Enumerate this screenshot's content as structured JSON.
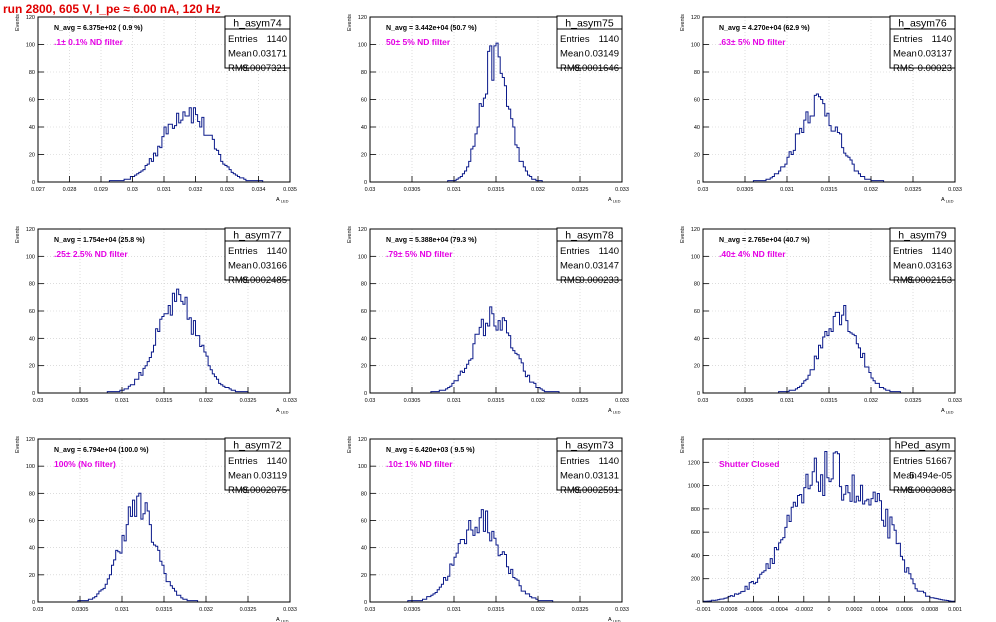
{
  "page": {
    "title": "run 2800,   605 V, I_pe ≈ 6.00 nA, 120 Hz"
  },
  "colors": {
    "hist": "#0b1a8a",
    "annotation": "#e400e4",
    "title": "#e00000",
    "frame": "#000000",
    "grid": "#c8c8c8"
  },
  "chart_data": [
    {
      "type": "bar",
      "name": "h_asym74",
      "navg": "N_avg = 6.375e+02 ( 0.9 %)",
      "filter": ".1± 0.1% ND filter",
      "stats": {
        "entries": "1140",
        "mean": "0.03171",
        "rms": "0.0007321"
      },
      "xlim": [
        0.027,
        0.035
      ],
      "ylim": [
        0,
        120
      ],
      "yticks": [
        0,
        20,
        40,
        60,
        80,
        100,
        120
      ],
      "xtick_labels": [
        "0.027",
        "0.028",
        "0.029",
        "0.03",
        "0.031",
        "0.032",
        "0.033",
        "0.034",
        "0.035"
      ],
      "xlabel": "A_LED",
      "ylabel": "Events",
      "mean": 0.03171,
      "rms": 0.00073,
      "peak": 53,
      "entries": 1140
    },
    {
      "type": "bar",
      "name": "h_asym75",
      "navg": "N_avg = 3.442e+04 (50.7 %)",
      "filter": "50± 5% ND filter",
      "stats": {
        "entries": "1140",
        "mean": "0.03149",
        "rms": "0.0001646"
      },
      "xlim": [
        0.03,
        0.033
      ],
      "ylim": [
        0,
        120
      ],
      "yticks": [
        0,
        20,
        40,
        60,
        80,
        100,
        120
      ],
      "xtick_labels": [
        "0.03",
        "0.0305",
        "0.031",
        "0.0315",
        "0.032",
        "0.0325",
        "0.033"
      ],
      "xlabel": "A_LED",
      "ylabel": "Events",
      "mean": 0.03149,
      "rms": 0.000165,
      "peak": 90,
      "entries": 1140
    },
    {
      "type": "bar",
      "name": "h_asym76",
      "navg": "N_avg = 4.270e+04 (62.9 %)",
      "filter": ".63± 5% ND filter",
      "stats": {
        "entries": "1140",
        "mean": "0.03137",
        "rms": "0.00023"
      },
      "xlim": [
        0.03,
        0.033
      ],
      "ylim": [
        0,
        120
      ],
      "yticks": [
        0,
        20,
        40,
        60,
        80,
        100,
        120
      ],
      "xtick_labels": [
        "0.03",
        "0.0305",
        "0.031",
        "0.0315",
        "0.032",
        "0.0325",
        "0.033"
      ],
      "xlabel": "A_LED",
      "ylabel": "Events",
      "mean": 0.03137,
      "rms": 0.00023,
      "peak": 58,
      "entries": 1140
    },
    {
      "type": "bar",
      "name": "h_asym77",
      "navg": "N_avg = 1.754e+04 (25.8 %)",
      "filter": ".25± 2.5% ND filter",
      "stats": {
        "entries": "1140",
        "mean": "0.03166",
        "rms": "0.0002485"
      },
      "xlim": [
        0.03,
        0.033
      ],
      "ylim": [
        0,
        120
      ],
      "yticks": [
        0,
        20,
        40,
        60,
        80,
        100,
        120
      ],
      "xtick_labels": [
        "0.03",
        "0.0305",
        "0.031",
        "0.0315",
        "0.032",
        "0.0325",
        "0.033"
      ],
      "xlabel": "A_LED",
      "ylabel": "Events",
      "mean": 0.03166,
      "rms": 0.00025,
      "peak": 65,
      "entries": 1140
    },
    {
      "type": "bar",
      "name": "h_asym78",
      "navg": "N_avg = 5.388e+04 (79.3 %)",
      "filter": ".79± 5% ND filter",
      "stats": {
        "entries": "1140",
        "mean": "0.03147",
        "rms": "0.000233"
      },
      "xlim": [
        0.03,
        0.033
      ],
      "ylim": [
        0,
        120
      ],
      "yticks": [
        0,
        20,
        40,
        60,
        80,
        100,
        120
      ],
      "xtick_labels": [
        "0.03",
        "0.0305",
        "0.031",
        "0.0315",
        "0.032",
        "0.0325",
        "0.033"
      ],
      "xlabel": "A_LED",
      "ylabel": "Events",
      "mean": 0.03147,
      "rms": 0.000233,
      "peak": 55,
      "entries": 1140
    },
    {
      "type": "bar",
      "name": "h_asym79",
      "navg": "N_avg = 2.765e+04 (40.7 %)",
      "filter": ".40± 4% ND filter",
      "stats": {
        "entries": "1140",
        "mean": "0.03163",
        "rms": "0.0002153"
      },
      "xlim": [
        0.03,
        0.033
      ],
      "ylim": [
        0,
        120
      ],
      "yticks": [
        0,
        20,
        40,
        60,
        80,
        100,
        120
      ],
      "xtick_labels": [
        "0.03",
        "0.0305",
        "0.031",
        "0.0315",
        "0.032",
        "0.0325",
        "0.033"
      ],
      "xlabel": "A_LED",
      "ylabel": "Events",
      "mean": 0.03163,
      "rms": 0.000215,
      "peak": 60,
      "entries": 1140
    },
    {
      "type": "bar",
      "name": "h_asym72",
      "navg": "N_avg = 6.794e+04 (100.0 %)",
      "filter": "100% (No filter)",
      "stats": {
        "entries": "1140",
        "mean": "0.03119",
        "rms": "0.0002075"
      },
      "xlim": [
        0.03,
        0.033
      ],
      "ylim": [
        0,
        120
      ],
      "yticks": [
        0,
        20,
        40,
        60,
        80,
        100,
        120
      ],
      "xtick_labels": [
        "0.03",
        "0.0305",
        "0.031",
        "0.0315",
        "0.032",
        "0.0325",
        "0.033"
      ],
      "xlabel": "A_LED",
      "ylabel": "Events",
      "mean": 0.03119,
      "rms": 0.00021,
      "peak": 70,
      "entries": 1140
    },
    {
      "type": "bar",
      "name": "h_asym73",
      "navg": "N_avg = 6.420e+03 ( 9.5 %)",
      "filter": ".10± 1% ND filter",
      "stats": {
        "entries": "1140",
        "mean": "0.03131",
        "rms": "0.0002591"
      },
      "xlim": [
        0.03,
        0.033
      ],
      "ylim": [
        0,
        120
      ],
      "yticks": [
        0,
        20,
        40,
        60,
        80,
        100,
        120
      ],
      "xtick_labels": [
        "0.03",
        "0.0305",
        "0.031",
        "0.0315",
        "0.032",
        "0.0325",
        "0.033"
      ],
      "xlabel": "A_LED",
      "ylabel": "Events",
      "mean": 0.03131,
      "rms": 0.00026,
      "peak": 60,
      "entries": 1140
    },
    {
      "type": "bar",
      "name": "hPed_asym",
      "navg": "",
      "filter": "Shutter Closed",
      "stats": {
        "entries": "51667",
        "mean": "5.494e-05",
        "rms": "0.0003083"
      },
      "xlim": [
        -0.001,
        0.001
      ],
      "ylim": [
        0,
        1400
      ],
      "yticks": [
        0,
        200,
        400,
        600,
        800,
        1000,
        1200
      ],
      "xtick_labels": [
        "-0.001",
        "-0.0008",
        "-0.0006",
        "-0.0004",
        "-0.0002",
        "0",
        "0.0002",
        "0.0004",
        "0.0006",
        "0.0008",
        "0.001"
      ],
      "xlabel": "",
      "ylabel": "Events",
      "mean": 0.0,
      "rms": 0.00031,
      "peak": 1310,
      "entries": 51667
    }
  ]
}
